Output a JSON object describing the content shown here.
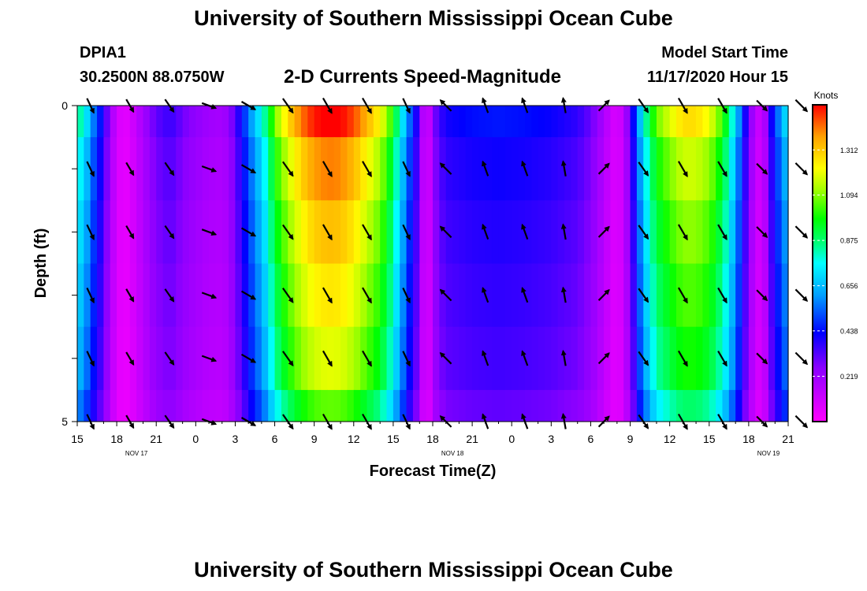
{
  "header": {
    "title": "University of Southern Mississippi Ocean Cube",
    "station_id": "DPIA1",
    "station_coords": "30.2500N 88.0750W",
    "subtitle": "2-D Currents Speed-Magnitude",
    "model_start_label": "Model Start Time",
    "model_start_time": "11/17/2020 Hour 15"
  },
  "footer": {
    "title": "University of Southern Mississippi Ocean Cube"
  },
  "chart_data": {
    "type": "heatmap",
    "title": "2-D Currents Speed-Magnitude",
    "xlabel": "Forecast Time(Z)",
    "ylabel": "Depth (ft)",
    "x_tick_labels": [
      "15",
      "18",
      "21",
      "0",
      "3",
      "6",
      "9",
      "12",
      "15",
      "18",
      "21",
      "0",
      "3",
      "6",
      "9",
      "12",
      "15",
      "18",
      "21"
    ],
    "date_labels": [
      "NOV 17",
      "NOV 18",
      "NOV 19"
    ],
    "y_tick_labels": [
      "0",
      "5"
    ],
    "ylim": [
      0,
      5
    ],
    "colorbar": {
      "title": "Knots",
      "ticks": [
        "1.312",
        "1.094",
        "0.875",
        "0.656",
        "0.438",
        "0.219"
      ],
      "range": [
        0,
        1.53
      ]
    },
    "speed_profile": [
      [
        15.0,
        0.75
      ],
      [
        15.3,
        0.7
      ],
      [
        15.6,
        0.65
      ],
      [
        16.0,
        0.55
      ],
      [
        16.4,
        0.45
      ],
      [
        16.8,
        0.38
      ],
      [
        17.3,
        0.25
      ],
      [
        18.0,
        0.08
      ],
      [
        18.6,
        0.05
      ],
      [
        19.0,
        0.07
      ],
      [
        19.5,
        0.12
      ],
      [
        20.0,
        0.17
      ],
      [
        20.5,
        0.22
      ],
      [
        21.0,
        0.27
      ],
      [
        21.5,
        0.29
      ],
      [
        22.0,
        0.31
      ],
      [
        22.5,
        0.29
      ],
      [
        23.0,
        0.25
      ],
      [
        24.0,
        0.21
      ],
      [
        25.0,
        0.18
      ],
      [
        26.0,
        0.17
      ],
      [
        26.5,
        0.2
      ],
      [
        27.0,
        0.28
      ],
      [
        27.5,
        0.38
      ],
      [
        28.0,
        0.48
      ],
      [
        28.5,
        0.58
      ],
      [
        29.0,
        0.66
      ],
      [
        29.5,
        0.78
      ],
      [
        30.0,
        0.93
      ],
      [
        31.0,
        1.1
      ],
      [
        32.0,
        1.22
      ],
      [
        33.0,
        1.3
      ],
      [
        34.0,
        1.33
      ],
      [
        35.0,
        1.32
      ],
      [
        36.0,
        1.26
      ],
      [
        37.0,
        1.16
      ],
      [
        38.0,
        1.06
      ],
      [
        38.5,
        0.96
      ],
      [
        39.0,
        0.85
      ],
      [
        39.5,
        0.68
      ],
      [
        40.0,
        0.55
      ],
      [
        40.4,
        0.42
      ],
      [
        40.8,
        0.33
      ],
      [
        41.0,
        0.22
      ],
      [
        41.3,
        0.13
      ],
      [
        41.5,
        0.06
      ],
      [
        41.7,
        0.1
      ],
      [
        42.0,
        0.22
      ],
      [
        42.5,
        0.3
      ],
      [
        43.0,
        0.35
      ],
      [
        45.0,
        0.38
      ],
      [
        47.0,
        0.39
      ],
      [
        49.0,
        0.38
      ],
      [
        51.0,
        0.36
      ],
      [
        52.0,
        0.34
      ],
      [
        53.0,
        0.32
      ],
      [
        54.0,
        0.26
      ],
      [
        55.0,
        0.16
      ],
      [
        55.5,
        0.1
      ],
      [
        56.0,
        0.07
      ],
      [
        56.5,
        0.12
      ],
      [
        57.0,
        0.27
      ],
      [
        57.5,
        0.48
      ],
      [
        58.0,
        0.66
      ],
      [
        58.5,
        0.8
      ],
      [
        59.0,
        0.92
      ],
      [
        60.0,
        1.02
      ],
      [
        61.0,
        1.1
      ],
      [
        62.0,
        1.1
      ],
      [
        63.0,
        1.04
      ],
      [
        63.5,
        0.97
      ],
      [
        64.0,
        0.88
      ],
      [
        64.5,
        0.76
      ],
      [
        65.0,
        0.6
      ],
      [
        65.5,
        0.44
      ],
      [
        66.0,
        0.25
      ],
      [
        66.5,
        0.13
      ],
      [
        67.0,
        0.08
      ],
      [
        67.3,
        0.18
      ],
      [
        67.6,
        0.32
      ],
      [
        68.0,
        0.42
      ],
      [
        68.5,
        0.55
      ],
      [
        69.0,
        0.64
      ]
    ],
    "depth_factors": [
      1.16,
      1.06,
      1.0,
      0.95,
      0.9,
      0.8
    ],
    "current_arrows": {
      "times": [
        16,
        19,
        22,
        25,
        28,
        31,
        34,
        37,
        40,
        43,
        46,
        49,
        52,
        55,
        58,
        61,
        64,
        67,
        70
      ],
      "depth_levels": [
        0,
        1,
        2,
        3,
        4,
        5
      ],
      "headings_deg": [
        155,
        150,
        145,
        110,
        120,
        145,
        150,
        150,
        155,
        315,
        340,
        340,
        350,
        45,
        145,
        150,
        150,
        135,
        135
      ]
    }
  }
}
